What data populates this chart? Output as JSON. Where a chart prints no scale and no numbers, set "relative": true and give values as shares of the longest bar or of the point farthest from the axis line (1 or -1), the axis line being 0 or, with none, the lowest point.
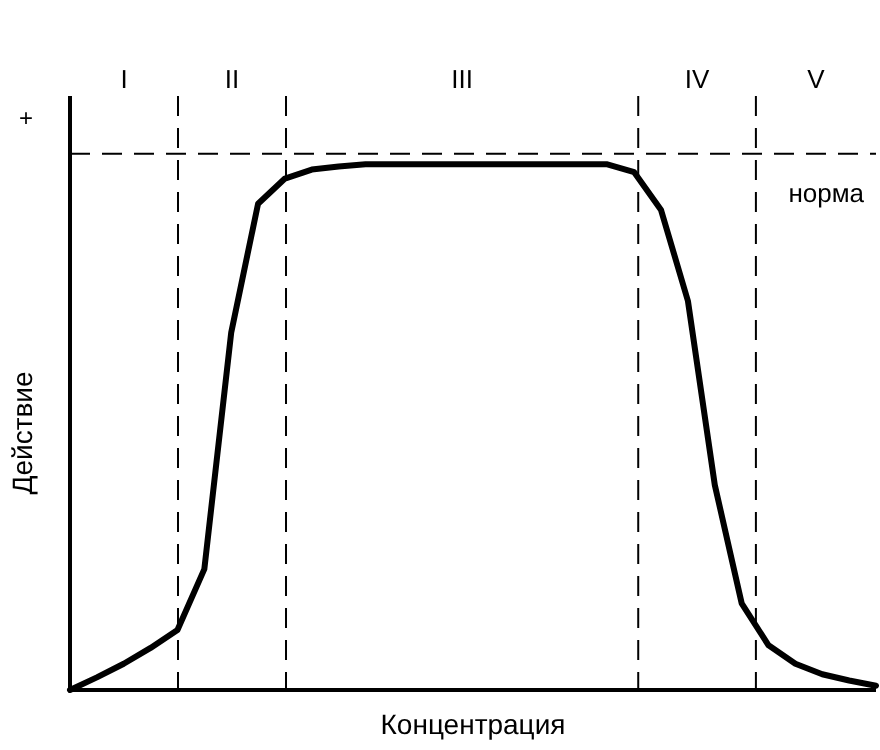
{
  "chart_data": {
    "type": "line",
    "relative": true,
    "xlabel": "Концентрация",
    "ylabel": "Действие",
    "annotations": [
      "+",
      "I",
      "II",
      "III",
      "IV",
      "V"
    ],
    "grid": "x",
    "categories": [
      null,
      null,
      null,
      null,
      null,
      null,
      null,
      null,
      null,
      null,
      null,
      null,
      null,
      null,
      null,
      null,
      null,
      null,
      null,
      null,
      null,
      null,
      null,
      null,
      null,
      null,
      null,
      null,
      null,
      null,
      null
    ],
    "series": [
      {
        "color": "#000000",
        "values": [
          0,
          0.024,
          0.05,
          0.08,
          0.114,
          0.23,
          0.68,
          0.925,
          0.973,
          0.99,
          0.996,
          1,
          1,
          1,
          1,
          1,
          1,
          1,
          1,
          1,
          1,
          0.985,
          0.913,
          0.74,
          0.39,
          0.165,
          0.085,
          0.05,
          0.03,
          0.018,
          0.008
        ]
      }
    ],
    "ref_lines": [
      {
        "axis": "y",
        "value": 1.02,
        "label": "норма",
        "line_style": "dashed"
      }
    ]
  }
}
